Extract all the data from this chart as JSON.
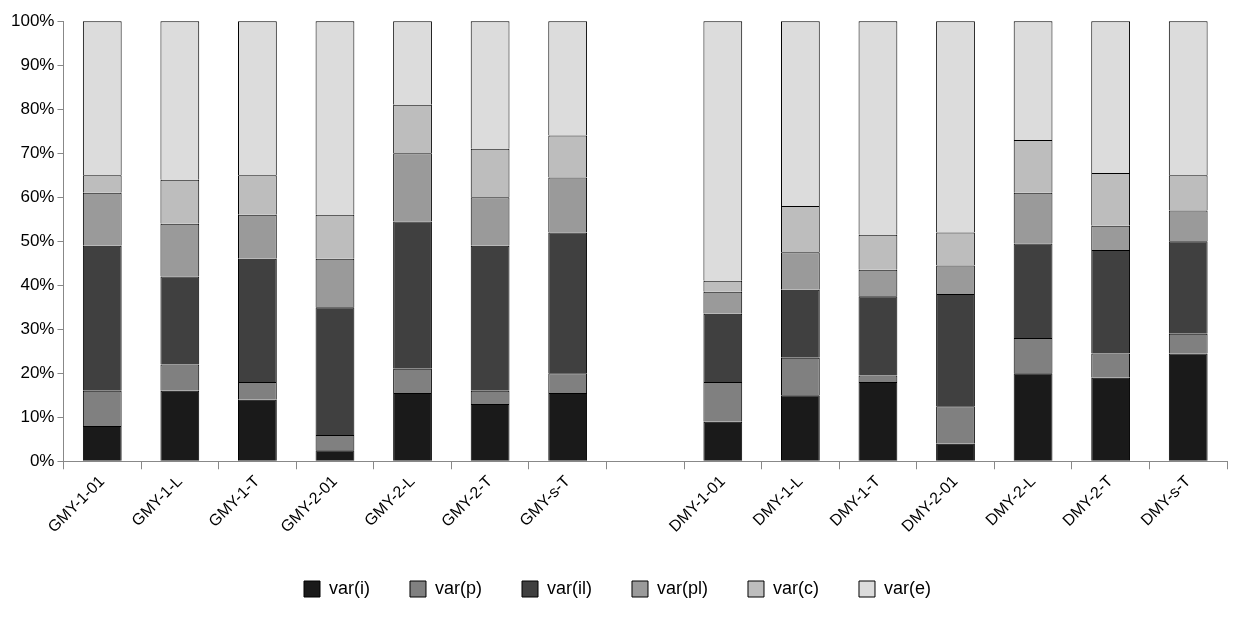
{
  "chart_data": {
    "type": "bar",
    "stacked": true,
    "categories": [
      "GMY-1-01",
      "GMY-1-L",
      "GMY-1-T",
      "GMY-2-01",
      "GMY-2-L",
      "GMY-2-T",
      "GMY-s-T",
      null,
      "DMY-1-01",
      "DMY-1-L",
      "DMY-1-T",
      "DMY-2-01",
      "DMY-2-L",
      "DMY-2-T",
      "DMY-s-T"
    ],
    "series": [
      {
        "name": "var(i)",
        "color": "#1a1a1a",
        "values": [
          8,
          16,
          14,
          2.5,
          15.5,
          13,
          15.5,
          null,
          9,
          15,
          18,
          4,
          20,
          19,
          24.5
        ]
      },
      {
        "name": "var(p)",
        "color": "#808080",
        "values": [
          8,
          6,
          4,
          3.5,
          5.5,
          3,
          4.5,
          null,
          9,
          8.5,
          1.5,
          8.5,
          8,
          5.5,
          4.5
        ]
      },
      {
        "name": "var(il)",
        "color": "#404040",
        "values": [
          33,
          20,
          28,
          29,
          33.5,
          33,
          32,
          null,
          15.5,
          15.5,
          18,
          25.5,
          21.5,
          23.5,
          21
        ]
      },
      {
        "name": "var(pl)",
        "color": "#9a9a9a",
        "values": [
          12,
          12,
          10,
          11,
          15.5,
          11,
          12.5,
          null,
          5,
          8.5,
          6,
          6.5,
          11.5,
          5.5,
          7
        ]
      },
      {
        "name": "var(c)",
        "color": "#bdbdbd",
        "values": [
          4,
          10,
          9,
          10,
          11,
          11,
          9.5,
          null,
          2.5,
          10.5,
          8,
          7.5,
          12,
          12,
          8
        ]
      },
      {
        "name": "var(e)",
        "color": "#dcdcdc",
        "values": [
          35,
          36,
          35,
          44,
          19,
          29,
          26,
          null,
          59,
          42,
          48.5,
          48,
          27,
          34.5,
          35
        ]
      }
    ],
    "ylim": [
      0,
      100
    ],
    "yticks": [
      {
        "value": 0,
        "label": "0%"
      },
      {
        "value": 10,
        "label": "10%"
      },
      {
        "value": 20,
        "label": "20%"
      },
      {
        "value": 30,
        "label": "30%"
      },
      {
        "value": 40,
        "label": "40%"
      },
      {
        "value": 50,
        "label": "50%"
      },
      {
        "value": 60,
        "label": "60%"
      },
      {
        "value": 70,
        "label": "70%"
      },
      {
        "value": 80,
        "label": "80%"
      },
      {
        "value": 90,
        "label": "90%"
      },
      {
        "value": 100,
        "label": "100%"
      }
    ],
    "grid": false,
    "legend": "bottom"
  }
}
